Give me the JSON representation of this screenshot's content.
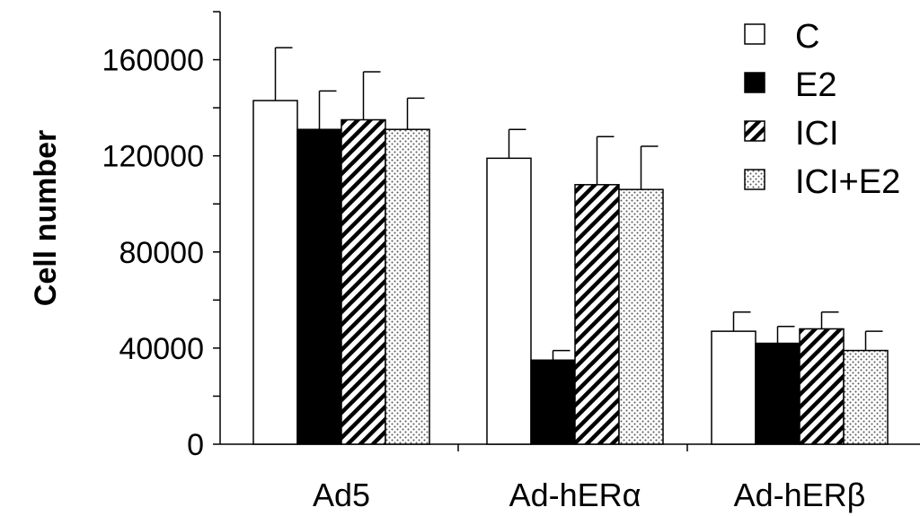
{
  "chart_data": {
    "type": "bar",
    "title": "",
    "xlabel": "",
    "ylabel": "Cell number",
    "ylim": [
      0,
      180000
    ],
    "yticks": [
      0,
      40000,
      80000,
      120000,
      160000
    ],
    "yticks_minor": [
      20000,
      60000,
      100000,
      140000,
      180000
    ],
    "grid": false,
    "legend_position": "top-right",
    "categories": [
      "Ad5",
      "Ad-hERα",
      "Ad-hERβ"
    ],
    "series": [
      {
        "name": "C",
        "pattern": "white",
        "values": [
          143000,
          119000,
          47000
        ],
        "errors": [
          22000,
          12000,
          8000
        ]
      },
      {
        "name": "E2",
        "pattern": "black",
        "values": [
          131000,
          35000,
          42000
        ],
        "errors": [
          16000,
          4000,
          7000
        ]
      },
      {
        "name": "ICI",
        "pattern": "hatch",
        "values": [
          135000,
          108000,
          48000
        ],
        "errors": [
          20000,
          20000,
          7000
        ]
      },
      {
        "name": "ICI+E2",
        "pattern": "dots",
        "values": [
          131000,
          106000,
          39000
        ],
        "errors": [
          13000,
          18000,
          8000
        ]
      }
    ]
  }
}
